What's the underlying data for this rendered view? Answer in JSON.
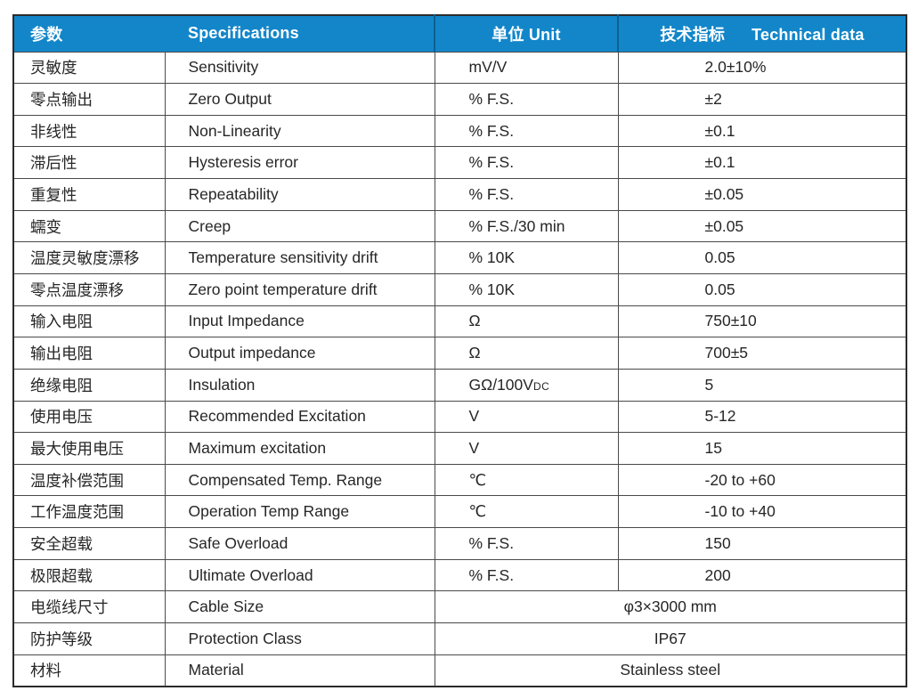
{
  "table": {
    "header": {
      "param_zh": "参数",
      "spec": "Specifications",
      "unit": "单位 Unit",
      "tech_zh": "技术指标",
      "tech_en": "Technical data"
    },
    "colors": {
      "header_bg": "#1386c9",
      "header_divider": "#0d5f91",
      "grid": "#4a4a4a",
      "frame": "#2b2b2b",
      "text": "#262626",
      "header_text": "#ffffff"
    },
    "rows": [
      {
        "param_zh": "灵敏度",
        "spec": "Sensitivity",
        "unit": "mV/V",
        "value": "2.0±10%"
      },
      {
        "param_zh": "零点输出",
        "spec": "Zero Output",
        "unit": "% F.S.",
        "value": "±2"
      },
      {
        "param_zh": "非线性",
        "spec": "Non-Linearity",
        "unit": "% F.S.",
        "value": "±0.1"
      },
      {
        "param_zh": "滞后性",
        "spec": "Hysteresis error",
        "unit": "% F.S.",
        "value": "±0.1"
      },
      {
        "param_zh": "重复性",
        "spec": "Repeatability",
        "unit": "% F.S.",
        "value": "±0.05"
      },
      {
        "param_zh": "蠕变",
        "spec": "Creep",
        "unit": "% F.S./30 min",
        "value": "±0.05"
      },
      {
        "param_zh": "温度灵敏度漂移",
        "spec": "Temperature sensitivity drift",
        "unit": "% 10K",
        "value": "0.05"
      },
      {
        "param_zh": "零点温度漂移",
        "spec": "Zero point temperature drift",
        "unit": "% 10K",
        "value": "0.05"
      },
      {
        "param_zh": "输入电阻",
        "spec": "Input Impedance",
        "unit": "Ω",
        "value": "750±10"
      },
      {
        "param_zh": "输出电阻",
        "spec": "Output impedance",
        "unit": "Ω",
        "value": "700±5"
      },
      {
        "param_zh": "绝缘电阻",
        "spec": "Insulation",
        "unit": "GΩ/100V",
        "unit_suffix": "DC",
        "value": "5"
      },
      {
        "param_zh": "使用电压",
        "spec": "Recommended Excitation",
        "unit": "V",
        "value": "5-12"
      },
      {
        "param_zh": "最大使用电压",
        "spec": "Maximum excitation",
        "unit": "V",
        "value": "15"
      },
      {
        "param_zh": "温度补偿范围",
        "spec": "Compensated Temp. Range",
        "unit": "℃",
        "value": "-20 to +60"
      },
      {
        "param_zh": "工作温度范围",
        "spec": "Operation Temp Range",
        "unit": "℃",
        "value": "-10 to +40"
      },
      {
        "param_zh": "安全超载",
        "spec": "Safe Overload",
        "unit": "% F.S.",
        "value": "150"
      },
      {
        "param_zh": "极限超载",
        "spec": "Ultimate Overload",
        "unit": "% F.S.",
        "value": "200"
      },
      {
        "param_zh": "电缆线尺寸",
        "spec": "Cable Size",
        "merged": true,
        "value": "φ3×3000 mm"
      },
      {
        "param_zh": "防护等级",
        "spec": "Protection Class",
        "merged": true,
        "value": "IP67"
      },
      {
        "param_zh": "材料",
        "spec": "Material",
        "merged": true,
        "value": "Stainless steel"
      }
    ]
  }
}
